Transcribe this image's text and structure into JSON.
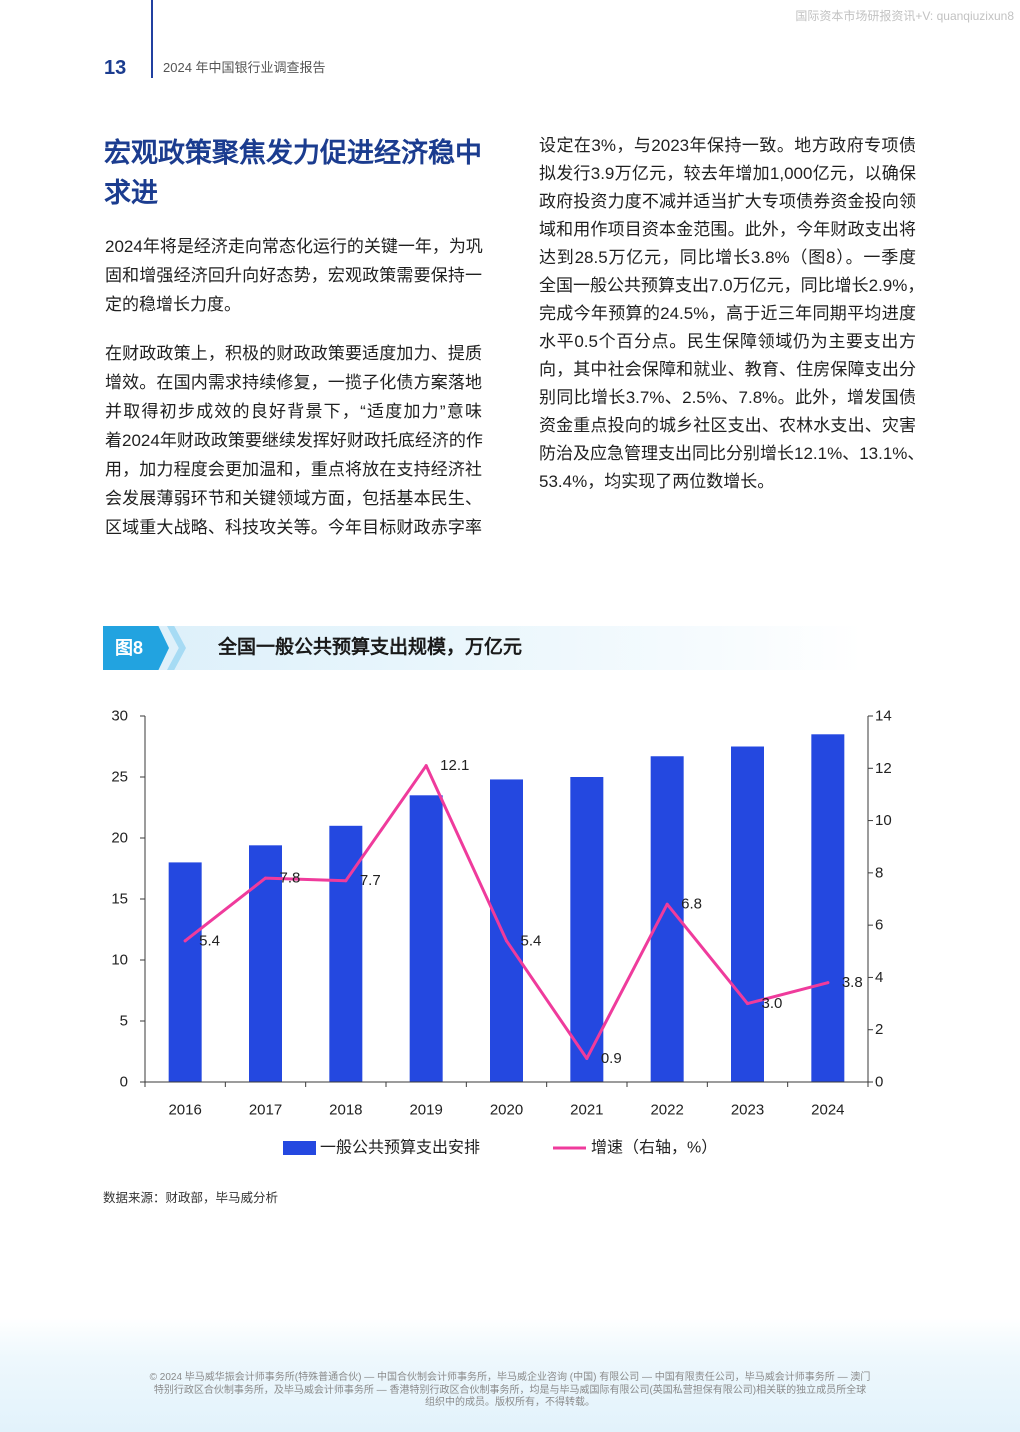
{
  "watermark": "国际资本市场研报资讯+V: quanqiuzixun8",
  "header": {
    "page_number": "13",
    "report_title": "2024 年中国银行业调查报告"
  },
  "section": {
    "heading": "宏观政策聚焦发力促进经济稳中求进",
    "left_column": {
      "paragraphs": [
        {
          "lines": [
            "2024年将是经济走向常态化运行的关键一年，为巩",
            "固和增强经济回升向好态势，宏观政策需要保持一",
            "定的稳增长力度。"
          ]
        },
        {
          "lines": [
            "在财政政策上，积极的财政政策要适度加力、提质",
            "增效。在国内需求持续修复，一揽子化债方案落地",
            "并取得初步成效的良好背景下，“适度加力”意味",
            "着2024年财政政策要继续发挥好财政托底经济的作",
            "用，加力程度会更加温和，重点将放在支持经济社",
            "会发展薄弱环节和关键领域方面，包括基本民生、",
            "区域重大战略、科技攻关等。今年目标财政赤字率"
          ]
        }
      ]
    },
    "right_column": {
      "lines": [
        "设定在3%，与2023年保持一致。地方政府专项债",
        "拟发行3.9万亿元，较去年增加1,000亿元，以确保",
        "政府投资力度不减并适当扩大专项债券资金投向领",
        "域和用作项目资本金范围。此外，今年财政支出将",
        "达到28.5万亿元，同比增长3.8%（图8）。一季度",
        "全国一般公共预算支出7.0万亿元，同比增长2.9%，",
        "完成今年预算的24.5%，高于近三年同期平均进度",
        "水平0.5个百分点。民生保障领域仍为主要支出方",
        "向，其中社会保障和就业、教育、住房保障支出分",
        "别同比增长3.7%、2.5%、7.8%。此外，增发国债",
        "资金重点投向的城乡社区支出、农林水支出、灾害",
        "防治及应急管理支出同比分别增长12.1%、13.1%、",
        "53.4%，均实现了两位数增长。"
      ]
    }
  },
  "figure": {
    "label": "图8",
    "source": "数据来源：财政部，毕马威分析"
  },
  "chart_data": {
    "type": "bar",
    "title": "全国一般公共预算支出规模，万亿元",
    "categories": [
      "2016",
      "2017",
      "2018",
      "2019",
      "2020",
      "2021",
      "2022",
      "2023",
      "2024"
    ],
    "series": [
      {
        "name": "一般公共预算支出安排",
        "type": "bar",
        "axis": "left",
        "values": [
          18.0,
          19.4,
          21.0,
          23.5,
          24.8,
          25.0,
          26.7,
          27.5,
          28.5
        ],
        "color": "#2448E0"
      },
      {
        "name": "增速（右轴，%）",
        "type": "line",
        "axis": "right",
        "values": [
          5.4,
          7.8,
          7.7,
          12.1,
          5.4,
          0.9,
          6.8,
          3.0,
          3.8
        ],
        "data_labels": [
          "5.4",
          "7.8",
          "7.7",
          "12.1",
          "5.4",
          "0.9",
          "6.8",
          "3.0",
          "3.8"
        ],
        "color": "#EF3B9C"
      }
    ],
    "y_left": {
      "range": [
        0,
        30
      ],
      "ticks": [
        0,
        5,
        10,
        15,
        20,
        25,
        30
      ]
    },
    "y_right": {
      "range": [
        0,
        14
      ],
      "ticks": [
        0,
        2,
        4,
        6,
        8,
        10,
        12,
        14
      ]
    },
    "grid": false,
    "legend": "bottom"
  },
  "footer": {
    "lines": [
      "© 2024 毕马威华振会计师事务所(特殊普通合伙) — 中国合伙制会计师事务所，毕马威企业咨询 (中国) 有限公司 — 中国有限责任公司，毕马威会计师事务所 — 澳门",
      "特别行政区合伙制事务所，及毕马威会计师事务所 — 香港特别行政区合伙制事务所，均是与毕马威国际有限公司(英国私营担保有限公司)相关联的独立成员所全球",
      "组织中的成员。版权所有，不得转载。"
    ]
  },
  "colors": {
    "heading": "#1B3C8F",
    "figure_accent": "#22A3E0"
  }
}
